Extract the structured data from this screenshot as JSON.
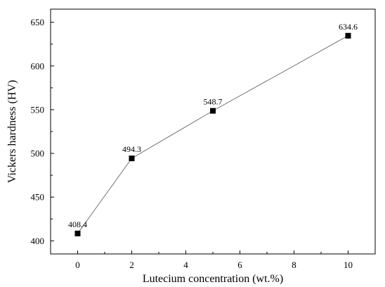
{
  "chart_data": {
    "type": "line",
    "title": "",
    "xlabel": "Lutecium concentration (wt.%)",
    "ylabel": "Vickers hardness (HV)",
    "xlim": [
      -1,
      11
    ],
    "ylim": [
      385,
      665
    ],
    "x_ticks": [
      0,
      2,
      4,
      6,
      8,
      10
    ],
    "y_ticks": [
      400,
      450,
      500,
      550,
      600,
      650
    ],
    "x_tick_labels": [
      "0",
      "2",
      "4",
      "6",
      "8",
      "10"
    ],
    "y_tick_labels": [
      "400",
      "450",
      "500",
      "550",
      "600",
      "650"
    ],
    "grid": false,
    "legend": "none",
    "marker": "square",
    "series": [
      {
        "x": [
          0,
          2,
          5,
          10
        ],
        "values": [
          408.4,
          494.3,
          548.7,
          634.6
        ],
        "labels": [
          "408.4",
          "494.3",
          "548.7",
          "634.6"
        ],
        "color": "#000000"
      }
    ]
  }
}
